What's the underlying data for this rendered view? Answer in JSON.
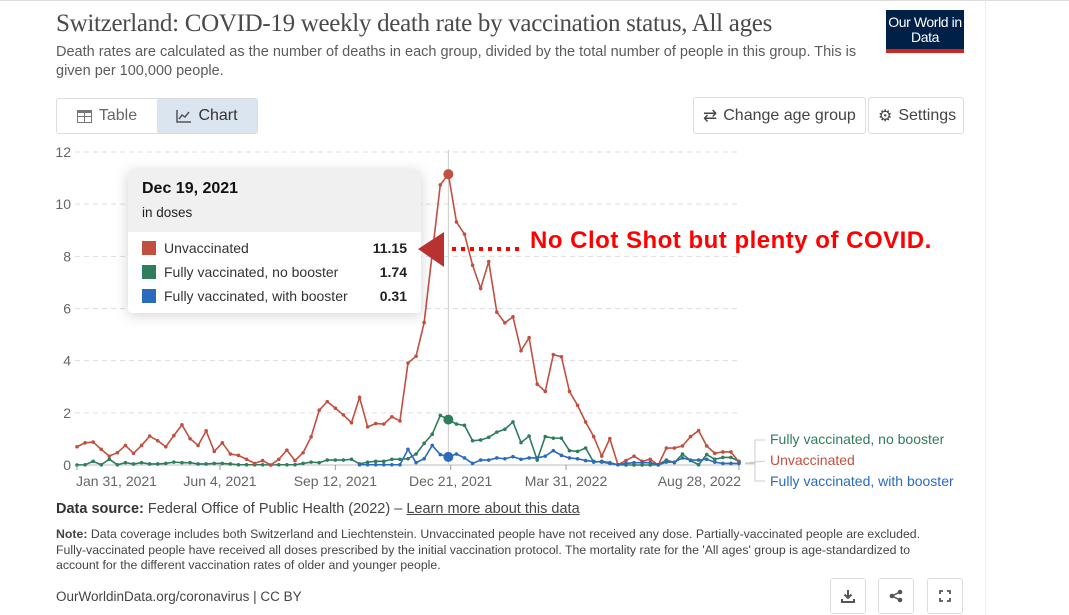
{
  "header": {
    "title": "Switzerland: COVID-19 weekly death rate by vaccination status, All ages",
    "subtitle": "Death rates are calculated as the number of deaths in each group, divided by the total number of people in this group. This is given per 100,000 people.",
    "logo": "Our World in Data"
  },
  "tabs": [
    {
      "label": "Table",
      "icon": "table-icon"
    },
    {
      "label": "Chart",
      "icon": "line-chart-icon",
      "active": true
    }
  ],
  "buttons": {
    "change_age": "Change age group",
    "settings": "Settings"
  },
  "tooltip": {
    "date": "Dec 19, 2021",
    "unit": "in doses",
    "rows": [
      {
        "label": "Unvaccinated",
        "value": "11.15",
        "color": "#c15040"
      },
      {
        "label": "Fully vaccinated, no booster",
        "value": "1.74",
        "color": "#2e7d5b"
      },
      {
        "label": "Fully vaccinated, with booster",
        "value": "0.31",
        "color": "#2a6abf"
      }
    ]
  },
  "annotation": "No Clot Shot but plenty of COVID.",
  "chart_data": {
    "type": "line",
    "title": "",
    "xlabel": "",
    "ylabel": "",
    "ylim": [
      0,
      12
    ],
    "grid": "horizontal dashed",
    "legend": "right (line labels)",
    "yticks": [
      0,
      2,
      4,
      6,
      8,
      10,
      12
    ],
    "xtick_labels": [
      "Jan 31, 2021",
      "Jun 4, 2021",
      "Sep 12, 2021",
      "Dec 21, 2021",
      "Mar 31, 2022",
      "Aug 28, 2022"
    ],
    "xtick_dates": [
      "2021-01-31",
      "2021-06-04",
      "2021-09-12",
      "2021-12-21",
      "2022-03-31",
      "2022-08-28"
    ],
    "highlight_date": "2021-12-19",
    "x": [
      "2021-01-31",
      "2021-02-07",
      "2021-02-14",
      "2021-02-21",
      "2021-02-28",
      "2021-03-07",
      "2021-03-14",
      "2021-03-21",
      "2021-03-28",
      "2021-04-04",
      "2021-04-11",
      "2021-04-18",
      "2021-04-25",
      "2021-05-02",
      "2021-05-09",
      "2021-05-16",
      "2021-05-23",
      "2021-05-30",
      "2021-06-06",
      "2021-06-13",
      "2021-06-20",
      "2021-06-27",
      "2021-07-04",
      "2021-07-11",
      "2021-07-18",
      "2021-07-25",
      "2021-08-01",
      "2021-08-08",
      "2021-08-15",
      "2021-08-22",
      "2021-08-29",
      "2021-09-05",
      "2021-09-12",
      "2021-09-19",
      "2021-09-26",
      "2021-10-03",
      "2021-10-10",
      "2021-10-17",
      "2021-10-24",
      "2021-10-31",
      "2021-11-07",
      "2021-11-14",
      "2021-11-21",
      "2021-11-28",
      "2021-12-05",
      "2021-12-12",
      "2021-12-19",
      "2021-12-26",
      "2022-01-02",
      "2022-01-09",
      "2022-01-16",
      "2022-01-23",
      "2022-01-30",
      "2022-02-06",
      "2022-02-13",
      "2022-02-20",
      "2022-02-27",
      "2022-03-06",
      "2022-03-13",
      "2022-03-20",
      "2022-03-27",
      "2022-04-03",
      "2022-04-10",
      "2022-04-17",
      "2022-04-24",
      "2022-05-01",
      "2022-05-08",
      "2022-05-15",
      "2022-05-22",
      "2022-05-29",
      "2022-06-05",
      "2022-06-12",
      "2022-06-19",
      "2022-06-26",
      "2022-07-03",
      "2022-07-10",
      "2022-07-17",
      "2022-07-24",
      "2022-07-31",
      "2022-08-07",
      "2022-08-14",
      "2022-08-21",
      "2022-08-28"
    ],
    "series": [
      {
        "name": "Fully vaccinated, no booster",
        "color": "#2e7d5b",
        "values": [
          0,
          0.01,
          0.14,
          0.01,
          0.22,
          0.01,
          0.09,
          0.04,
          0.09,
          0.04,
          0.04,
          0.06,
          0.11,
          0.09,
          0.09,
          0.04,
          0.04,
          0.06,
          0.06,
          0.04,
          0.01,
          0.01,
          0.01,
          0.01,
          0,
          0.01,
          0.01,
          0.01,
          0.06,
          0.11,
          0.09,
          0.19,
          0.19,
          0.19,
          0.22,
          0.04,
          0.11,
          0.14,
          0.14,
          0.22,
          0.22,
          0.24,
          0.42,
          0.83,
          1.18,
          1.9,
          1.74,
          1.57,
          1.52,
          0.93,
          0.96,
          1.06,
          1.26,
          1.37,
          1.65,
          0.86,
          1.11,
          0.19,
          1.09,
          1.03,
          1.03,
          0.55,
          0.52,
          0.65,
          0.11,
          0.14,
          0.09,
          0.01,
          0,
          0,
          0,
          0,
          0.01,
          0.19,
          0.09,
          0.42,
          0.17,
          0.01,
          0.4,
          0.22,
          0.29,
          0.29,
          0.14
        ]
      },
      {
        "name": "Unvaccinated",
        "color": "#c15040",
        "values": [
          0.7,
          0.85,
          0.88,
          0.6,
          0.34,
          0.47,
          0.75,
          0.45,
          0.75,
          1.11,
          0.93,
          0.7,
          1.13,
          1.54,
          1.01,
          0.75,
          1.31,
          0.52,
          0.85,
          0.42,
          0.37,
          0.22,
          0.06,
          0.17,
          0.0,
          0.22,
          0.57,
          0.17,
          0.47,
          1.08,
          2.1,
          2.43,
          2.18,
          1.92,
          1.62,
          2.59,
          1.46,
          1.59,
          1.57,
          1.85,
          1.69,
          3.91,
          4.17,
          5.46,
          null,
          10.74,
          11.15,
          9.32,
          8.85,
          7.66,
          6.77,
          7.8,
          5.86,
          5.45,
          5.68,
          4.38,
          4.88,
          3.1,
          2.82,
          4.23,
          4.15,
          2.82,
          2.29,
          1.65,
          1.09,
          0.34,
          1.01,
          0.01,
          0.17,
          0.34,
          0.14,
          0.22,
          0.0,
          0.65,
          0.65,
          0.73,
          1.09,
          1.32,
          0.73,
          0.45,
          0.5,
          0.5,
          0.11
        ]
      },
      {
        "name": "Fully vaccinated, with booster",
        "color": "#2a6abf",
        "values": [
          null,
          null,
          null,
          null,
          null,
          null,
          null,
          null,
          null,
          null,
          null,
          null,
          null,
          null,
          null,
          null,
          null,
          null,
          null,
          null,
          null,
          null,
          null,
          null,
          null,
          null,
          null,
          null,
          null,
          null,
          null,
          null,
          null,
          null,
          null,
          0.01,
          0.01,
          0.01,
          0.01,
          0.01,
          0.01,
          0.6,
          0.09,
          0.24,
          0.75,
          0.4,
          0.31,
          0.42,
          0.27,
          0.06,
          0.19,
          0.19,
          0.27,
          0.24,
          0.32,
          0.22,
          0.27,
          0.27,
          0.34,
          0.55,
          0.37,
          0.27,
          0.24,
          0.17,
          0.14,
          0.11,
          0.06,
          0.01,
          0.06,
          0.09,
          0.09,
          0.09,
          0.01,
          0.11,
          0.11,
          0.27,
          0.19,
          0.19,
          0.22,
          0.11,
          0.06,
          0.06,
          0.06
        ]
      }
    ]
  },
  "footer": {
    "source_label": "Data source:",
    "source": "Federal Office of Public Health (2022) – ",
    "learn_more": "Learn more about this data",
    "note_label": "Note:",
    "note": "Data coverage includes both Switzerland and Liechtenstein. Unvaccinated people have not received any dose. Partially-vaccinated people are excluded. Fully-vaccinated people have received all doses prescribed by the initial vaccination protocol. The mortality rate for the 'All ages' group is age-standardized to account for the different vaccination rates of older and younger people.",
    "url": "OurWorldinData.org/coronavirus | CC BY"
  }
}
